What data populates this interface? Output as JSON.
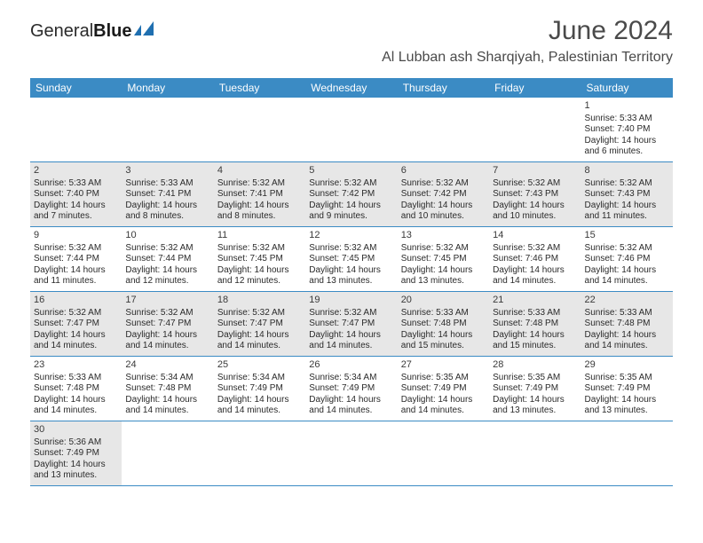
{
  "brand": {
    "part1": "General",
    "part2": "Blue"
  },
  "title": "June 2024",
  "location": "Al Lubban ash Sharqiyah, Palestinian Territory",
  "weekdays": [
    "Sunday",
    "Monday",
    "Tuesday",
    "Wednesday",
    "Thursday",
    "Friday",
    "Saturday"
  ],
  "colors": {
    "header_bg": "#3b8bc4",
    "header_text": "#ffffff",
    "shaded_bg": "#e7e7e7",
    "row_divider": "#3b8bc4",
    "text": "#2a2a2a"
  },
  "weeks": [
    [
      {
        "empty": true
      },
      {
        "empty": true
      },
      {
        "empty": true
      },
      {
        "empty": true
      },
      {
        "empty": true
      },
      {
        "empty": true
      },
      {
        "day": "1",
        "sunrise": "Sunrise: 5:33 AM",
        "sunset": "Sunset: 7:40 PM",
        "daylight1": "Daylight: 14 hours",
        "daylight2": "and 6 minutes."
      }
    ],
    [
      {
        "day": "2",
        "shaded": true,
        "sunrise": "Sunrise: 5:33 AM",
        "sunset": "Sunset: 7:40 PM",
        "daylight1": "Daylight: 14 hours",
        "daylight2": "and 7 minutes."
      },
      {
        "day": "3",
        "shaded": true,
        "sunrise": "Sunrise: 5:33 AM",
        "sunset": "Sunset: 7:41 PM",
        "daylight1": "Daylight: 14 hours",
        "daylight2": "and 8 minutes."
      },
      {
        "day": "4",
        "shaded": true,
        "sunrise": "Sunrise: 5:32 AM",
        "sunset": "Sunset: 7:41 PM",
        "daylight1": "Daylight: 14 hours",
        "daylight2": "and 8 minutes."
      },
      {
        "day": "5",
        "shaded": true,
        "sunrise": "Sunrise: 5:32 AM",
        "sunset": "Sunset: 7:42 PM",
        "daylight1": "Daylight: 14 hours",
        "daylight2": "and 9 minutes."
      },
      {
        "day": "6",
        "shaded": true,
        "sunrise": "Sunrise: 5:32 AM",
        "sunset": "Sunset: 7:42 PM",
        "daylight1": "Daylight: 14 hours",
        "daylight2": "and 10 minutes."
      },
      {
        "day": "7",
        "shaded": true,
        "sunrise": "Sunrise: 5:32 AM",
        "sunset": "Sunset: 7:43 PM",
        "daylight1": "Daylight: 14 hours",
        "daylight2": "and 10 minutes."
      },
      {
        "day": "8",
        "shaded": true,
        "sunrise": "Sunrise: 5:32 AM",
        "sunset": "Sunset: 7:43 PM",
        "daylight1": "Daylight: 14 hours",
        "daylight2": "and 11 minutes."
      }
    ],
    [
      {
        "day": "9",
        "sunrise": "Sunrise: 5:32 AM",
        "sunset": "Sunset: 7:44 PM",
        "daylight1": "Daylight: 14 hours",
        "daylight2": "and 11 minutes."
      },
      {
        "day": "10",
        "sunrise": "Sunrise: 5:32 AM",
        "sunset": "Sunset: 7:44 PM",
        "daylight1": "Daylight: 14 hours",
        "daylight2": "and 12 minutes."
      },
      {
        "day": "11",
        "sunrise": "Sunrise: 5:32 AM",
        "sunset": "Sunset: 7:45 PM",
        "daylight1": "Daylight: 14 hours",
        "daylight2": "and 12 minutes."
      },
      {
        "day": "12",
        "sunrise": "Sunrise: 5:32 AM",
        "sunset": "Sunset: 7:45 PM",
        "daylight1": "Daylight: 14 hours",
        "daylight2": "and 13 minutes."
      },
      {
        "day": "13",
        "sunrise": "Sunrise: 5:32 AM",
        "sunset": "Sunset: 7:45 PM",
        "daylight1": "Daylight: 14 hours",
        "daylight2": "and 13 minutes."
      },
      {
        "day": "14",
        "sunrise": "Sunrise: 5:32 AM",
        "sunset": "Sunset: 7:46 PM",
        "daylight1": "Daylight: 14 hours",
        "daylight2": "and 14 minutes."
      },
      {
        "day": "15",
        "sunrise": "Sunrise: 5:32 AM",
        "sunset": "Sunset: 7:46 PM",
        "daylight1": "Daylight: 14 hours",
        "daylight2": "and 14 minutes."
      }
    ],
    [
      {
        "day": "16",
        "shaded": true,
        "sunrise": "Sunrise: 5:32 AM",
        "sunset": "Sunset: 7:47 PM",
        "daylight1": "Daylight: 14 hours",
        "daylight2": "and 14 minutes."
      },
      {
        "day": "17",
        "shaded": true,
        "sunrise": "Sunrise: 5:32 AM",
        "sunset": "Sunset: 7:47 PM",
        "daylight1": "Daylight: 14 hours",
        "daylight2": "and 14 minutes."
      },
      {
        "day": "18",
        "shaded": true,
        "sunrise": "Sunrise: 5:32 AM",
        "sunset": "Sunset: 7:47 PM",
        "daylight1": "Daylight: 14 hours",
        "daylight2": "and 14 minutes."
      },
      {
        "day": "19",
        "shaded": true,
        "sunrise": "Sunrise: 5:32 AM",
        "sunset": "Sunset: 7:47 PM",
        "daylight1": "Daylight: 14 hours",
        "daylight2": "and 14 minutes."
      },
      {
        "day": "20",
        "shaded": true,
        "sunrise": "Sunrise: 5:33 AM",
        "sunset": "Sunset: 7:48 PM",
        "daylight1": "Daylight: 14 hours",
        "daylight2": "and 15 minutes."
      },
      {
        "day": "21",
        "shaded": true,
        "sunrise": "Sunrise: 5:33 AM",
        "sunset": "Sunset: 7:48 PM",
        "daylight1": "Daylight: 14 hours",
        "daylight2": "and 15 minutes."
      },
      {
        "day": "22",
        "shaded": true,
        "sunrise": "Sunrise: 5:33 AM",
        "sunset": "Sunset: 7:48 PM",
        "daylight1": "Daylight: 14 hours",
        "daylight2": "and 14 minutes."
      }
    ],
    [
      {
        "day": "23",
        "sunrise": "Sunrise: 5:33 AM",
        "sunset": "Sunset: 7:48 PM",
        "daylight1": "Daylight: 14 hours",
        "daylight2": "and 14 minutes."
      },
      {
        "day": "24",
        "sunrise": "Sunrise: 5:34 AM",
        "sunset": "Sunset: 7:48 PM",
        "daylight1": "Daylight: 14 hours",
        "daylight2": "and 14 minutes."
      },
      {
        "day": "25",
        "sunrise": "Sunrise: 5:34 AM",
        "sunset": "Sunset: 7:49 PM",
        "daylight1": "Daylight: 14 hours",
        "daylight2": "and 14 minutes."
      },
      {
        "day": "26",
        "sunrise": "Sunrise: 5:34 AM",
        "sunset": "Sunset: 7:49 PM",
        "daylight1": "Daylight: 14 hours",
        "daylight2": "and 14 minutes."
      },
      {
        "day": "27",
        "sunrise": "Sunrise: 5:35 AM",
        "sunset": "Sunset: 7:49 PM",
        "daylight1": "Daylight: 14 hours",
        "daylight2": "and 14 minutes."
      },
      {
        "day": "28",
        "sunrise": "Sunrise: 5:35 AM",
        "sunset": "Sunset: 7:49 PM",
        "daylight1": "Daylight: 14 hours",
        "daylight2": "and 13 minutes."
      },
      {
        "day": "29",
        "sunrise": "Sunrise: 5:35 AM",
        "sunset": "Sunset: 7:49 PM",
        "daylight1": "Daylight: 14 hours",
        "daylight2": "and 13 minutes."
      }
    ],
    [
      {
        "day": "30",
        "shaded": true,
        "sunrise": "Sunrise: 5:36 AM",
        "sunset": "Sunset: 7:49 PM",
        "daylight1": "Daylight: 14 hours",
        "daylight2": "and 13 minutes."
      },
      {
        "empty": true
      },
      {
        "empty": true
      },
      {
        "empty": true
      },
      {
        "empty": true
      },
      {
        "empty": true
      },
      {
        "empty": true
      }
    ]
  ]
}
